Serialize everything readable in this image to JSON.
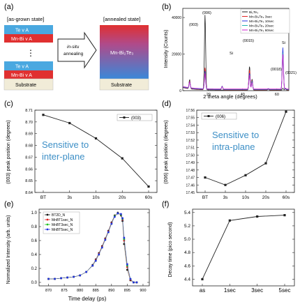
{
  "panels": {
    "a": {
      "label": "(a)",
      "asgrown_label": "[as-grown state]",
      "annealed_label": "[annealed state]",
      "layer_te_va": "Te  v A",
      "layer_mnbi_va": "Mn-Bi  v A",
      "dots": "⋮",
      "substrate": "Substrate",
      "arrow_text": [
        "in-situ",
        "annealing"
      ],
      "annealed_layer": "Mn-Bi₂Te₃",
      "colors": {
        "te": "#4aa8e0",
        "mnbi": "#e03030",
        "substrate": "#f1ecd8"
      }
    },
    "b": {
      "label": "(b)",
      "ylabel": "Intensity (Counts)",
      "xlabel": "2 theta angle (degrees)",
      "peak_labels": [
        "(003)",
        "(006)",
        "(0015)",
        "(0018)",
        "(0021)",
        "Si",
        "Si"
      ]
    },
    "c": {
      "label": "(c)",
      "ylabel": "(003) peak position (degrees)",
      "annotation": [
        "Sensitive to",
        "inter-plane"
      ]
    },
    "d": {
      "label": "(d)",
      "ylabel": "(006) peak position (degrees)",
      "annotation": [
        "Sensitive to",
        "intra-plane"
      ]
    },
    "e": {
      "label": "(e)",
      "ylabel": "Normalized Intensity (arb. units)",
      "xlabel": "Time delay (ps)"
    },
    "f": {
      "label": "(f)",
      "ylabel": "Decay time (pico second)"
    }
  },
  "chart_data": [
    {
      "id": "b",
      "type": "line",
      "title": "",
      "xlabel": "2 theta angle (degrees)",
      "ylabel": "Intensity (Counts)",
      "xlim": [
        5,
        67
      ],
      "ylim": [
        0,
        45000
      ],
      "xticks": [
        20,
        40,
        60
      ],
      "yticks": [
        0,
        20000,
        40000
      ],
      "legend_position": "top-right",
      "series": [
        {
          "name": "Bi₂Te₃",
          "color": "#222222",
          "x": [
            9,
            18,
            28,
            44,
            45.5,
            55,
            63.5,
            65
          ],
          "y": [
            5000,
            41000,
            0,
            13000,
            6000,
            500,
            1000,
            700
          ]
        },
        {
          "name": "Mn-Bi₂Te₃ 3sec",
          "color": "#e02020",
          "x": [
            9,
            18,
            28,
            44,
            45.5,
            55,
            63.5,
            65
          ],
          "y": [
            4000,
            12000,
            2000,
            11000,
            5000,
            400,
            21000,
            600
          ]
        },
        {
          "name": "Mn-Bi₂Te₃ 10sec",
          "color": "#2030e0",
          "x": [
            9,
            18,
            28,
            44,
            45.5,
            55,
            63.5,
            65
          ],
          "y": [
            3500,
            10000,
            1800,
            9000,
            4500,
            300,
            23000,
            500
          ]
        },
        {
          "name": "Mn-Bi₂Te₃ 20sec",
          "color": "#20b0b0",
          "x": [
            9,
            18,
            28,
            44,
            45.5,
            55,
            63.5,
            65
          ],
          "y": [
            3000,
            9000,
            1500,
            8000,
            4000,
            300,
            20000,
            500
          ]
        },
        {
          "name": "Mn-Bi₂Te₃ 60sec",
          "color": "#d020d0",
          "x": [
            9,
            18,
            28,
            44,
            45.5,
            55,
            63.5,
            65
          ],
          "y": [
            3000,
            8500,
            1200,
            7500,
            3500,
            250,
            19000,
            450
          ]
        }
      ]
    },
    {
      "id": "c",
      "type": "line",
      "title": "",
      "xlabel": "",
      "ylabel": "(003) peak position (degrees)",
      "categories": [
        "BT",
        "3s",
        "10s",
        "20s",
        "60s"
      ],
      "ylim": [
        8.64,
        8.71
      ],
      "yticks": [
        8.64,
        8.65,
        8.66,
        8.67,
        8.68,
        8.69,
        8.7,
        8.71
      ],
      "legend_position": "top-right",
      "series": [
        {
          "name": "(003)",
          "values": [
            8.706,
            8.699,
            8.686,
            8.669,
            8.645
          ]
        }
      ]
    },
    {
      "id": "d",
      "type": "line",
      "title": "",
      "xlabel": "",
      "ylabel": "(006) peak position (degrees)",
      "categories": [
        "BT",
        "3s",
        "10s",
        "20s",
        "60s"
      ],
      "ylim": [
        17.45,
        17.56
      ],
      "yticks": [
        17.45,
        17.46,
        17.47,
        17.48,
        17.49,
        17.5,
        17.51,
        17.52,
        17.53,
        17.54,
        17.55,
        17.56
      ],
      "legend_position": "top-left",
      "series": [
        {
          "name": "(006)",
          "values": [
            17.47,
            17.46,
            17.473,
            17.489,
            17.558
          ]
        }
      ]
    },
    {
      "id": "e",
      "type": "scatter",
      "title": "",
      "xlabel": "Time delay (ps)",
      "ylabel": "Normalized Intensity (arb. units)",
      "xlim": [
        867,
        902
      ],
      "ylim": [
        -0.05,
        1.05
      ],
      "xticks": [
        870,
        875,
        880,
        885,
        890,
        895,
        900
      ],
      "yticks": [
        0.0,
        0.2,
        0.4,
        0.6,
        0.8,
        1.0
      ],
      "legend_position": "top-left",
      "x": [
        870,
        872,
        874,
        876,
        878,
        880,
        882,
        884,
        885,
        886,
        887,
        888,
        889,
        890,
        891,
        892,
        893,
        893.5,
        894,
        895,
        896,
        897,
        898
      ],
      "series": [
        {
          "name": "BT2D_N",
          "color": "#111111",
          "values": [
            0.05,
            0.05,
            0.06,
            0.07,
            0.08,
            0.1,
            0.15,
            0.25,
            0.33,
            0.42,
            0.52,
            0.63,
            0.74,
            0.86,
            0.96,
            1.0,
            0.96,
            0.88,
            0.55,
            0.18,
            0.03,
            0.0,
            0.0
          ]
        },
        {
          "name": "MnBT1sec_N",
          "color": "#e02020",
          "values": [
            0.05,
            0.05,
            0.06,
            0.07,
            0.08,
            0.1,
            0.15,
            0.24,
            0.32,
            0.41,
            0.51,
            0.62,
            0.73,
            0.85,
            0.95,
            0.99,
            0.97,
            0.9,
            0.6,
            0.22,
            0.04,
            0.0,
            0.0
          ]
        },
        {
          "name": "MnBT3sec_N",
          "color": "#20c020",
          "values": [
            0.05,
            0.05,
            0.06,
            0.07,
            0.08,
            0.1,
            0.15,
            0.24,
            0.31,
            0.4,
            0.5,
            0.61,
            0.72,
            0.84,
            0.95,
            0.99,
            0.97,
            0.91,
            0.62,
            0.24,
            0.05,
            0.0,
            0.0
          ]
        },
        {
          "name": "MnBT5sec_N",
          "color": "#2030e0",
          "values": [
            0.05,
            0.05,
            0.06,
            0.07,
            0.08,
            0.1,
            0.15,
            0.24,
            0.31,
            0.4,
            0.5,
            0.61,
            0.72,
            0.84,
            0.94,
            0.99,
            0.98,
            0.92,
            0.64,
            0.26,
            0.05,
            0.0,
            0.0
          ]
        }
      ]
    },
    {
      "id": "f",
      "type": "line",
      "title": "",
      "xlabel": "",
      "ylabel": "Decay time (pico second)",
      "categories": [
        "as",
        "1sec",
        "3sec",
        "5sec"
      ],
      "ylim": [
        4.3,
        5.45
      ],
      "yticks": [
        4.4,
        4.6,
        4.8,
        5.0,
        5.2,
        5.4
      ],
      "series": [
        {
          "name": "",
          "values": [
            4.4,
            5.28,
            5.34,
            5.36
          ]
        }
      ]
    }
  ]
}
